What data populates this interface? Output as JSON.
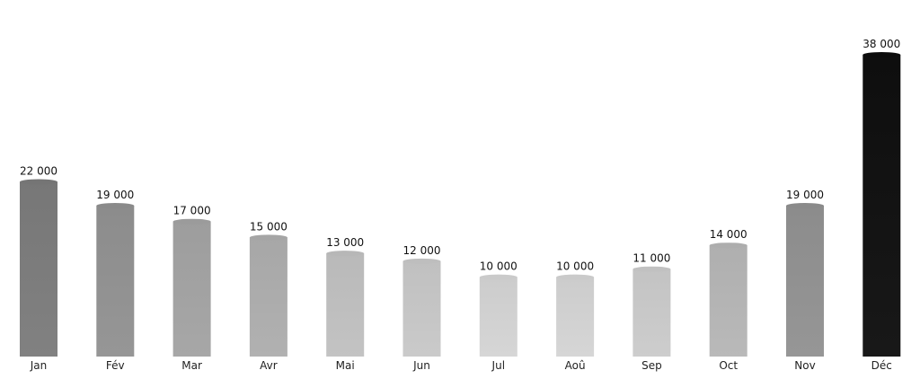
{
  "chart_data": {
    "type": "bar",
    "title": "",
    "xlabel": "",
    "ylabel": "",
    "grid": false,
    "legend": "none",
    "categories": [
      "Jan",
      "Fév",
      "Mar",
      "Avr",
      "Mai",
      "Jun",
      "Jul",
      "Aoû",
      "Sep",
      "Oct",
      "Nov",
      "Déc"
    ],
    "values": [
      22000,
      19000,
      17000,
      15000,
      13000,
      12000,
      10000,
      10000,
      11000,
      14000,
      19000,
      38000
    ],
    "value_labels": [
      "22 000",
      "19 000",
      "17 000",
      "15 000",
      "13 000",
      "12 000",
      "10 000",
      "10 000",
      "11 000",
      "14 000",
      "19 000",
      "38 000"
    ],
    "ylim": [
      0,
      38000
    ],
    "bar_colors": [
      "#7d7d7d",
      "#929292",
      "#a3a3a3",
      "#adadad",
      "#bfbfbf",
      "#c6c6c6",
      "#d2d2d2",
      "#d2d2d2",
      "#c9c9c9",
      "#b5b5b5",
      "#929292",
      "#141414"
    ]
  }
}
